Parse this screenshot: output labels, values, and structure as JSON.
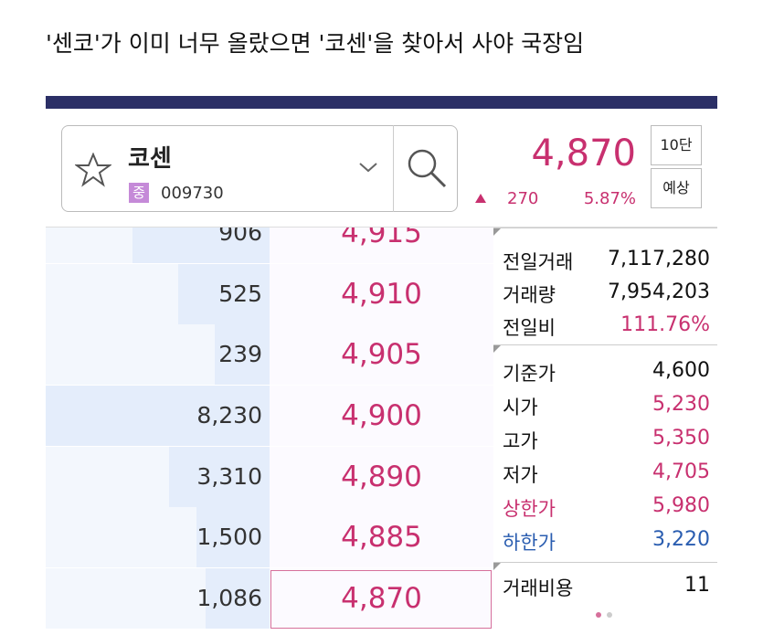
{
  "caption": "'센코'가 이미 너무 올랐으면 '코센'을 찾아서 사야 국장임",
  "search": {
    "name": "코센",
    "market": "중",
    "code": "009730"
  },
  "quote": {
    "price": "4,870",
    "change": "270",
    "change_rate": "5.87%"
  },
  "buttons": [
    "10단",
    "예상"
  ],
  "order_book": [
    {
      "quantity": "906",
      "price": "4,915"
    },
    {
      "quantity": "525",
      "price": "4,910"
    },
    {
      "quantity": "239",
      "price": "4,905"
    },
    {
      "quantity": "8,230",
      "price": "4,900"
    },
    {
      "quantity": "3,310",
      "price": "4,890"
    },
    {
      "quantity": "1,500",
      "price": "4,885"
    },
    {
      "quantity": "1,086",
      "price": "4,870"
    }
  ],
  "summary": [
    {
      "label": "전일거래",
      "value": "7,117,280"
    },
    {
      "label": "거래량",
      "value": "7,954,203"
    },
    {
      "label": "전일비",
      "value": "111.76%"
    },
    {
      "label": "기준가",
      "value": "4,600"
    },
    {
      "label": "시가",
      "value": "5,230"
    },
    {
      "label": "고가",
      "value": "5,350"
    },
    {
      "label": "저가",
      "value": "4,705"
    },
    {
      "label": "상한가",
      "value": "5,980"
    },
    {
      "label": "하한가",
      "value": "3,220"
    },
    {
      "label": "거래비용",
      "value": "11"
    }
  ]
}
